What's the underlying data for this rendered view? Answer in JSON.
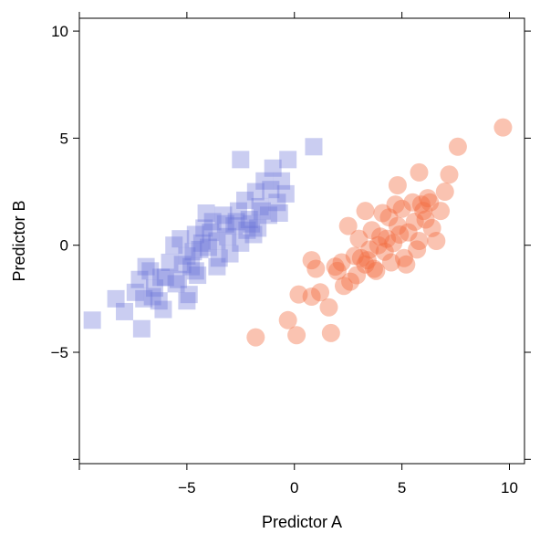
{
  "chart_data": {
    "type": "scatter",
    "xlabel": "Predictor A",
    "ylabel": "Predictor B",
    "xlim": [
      -10,
      10.7
    ],
    "ylim": [
      -10.2,
      10.6
    ],
    "xticks": [
      -10,
      -5,
      0,
      5,
      10
    ],
    "xtick_labels": [
      "",
      "−5",
      "0",
      "5",
      "10"
    ],
    "yticks": [
      -10,
      -5,
      0,
      5,
      10
    ],
    "ytick_labels": [
      "",
      "−5",
      "0",
      "5",
      "10"
    ],
    "grid": false,
    "series": [
      {
        "marker": "square",
        "color": "#6670d8",
        "opacity": 0.35,
        "points": [
          [
            -9.4,
            -3.5
          ],
          [
            -8.3,
            -2.5
          ],
          [
            -7.9,
            -3.1
          ],
          [
            -7.1,
            -3.9
          ],
          [
            -7.4,
            -2.2
          ],
          [
            -7.2,
            -1.6
          ],
          [
            -6.9,
            -1.0
          ],
          [
            -6.5,
            -2.0
          ],
          [
            -6.3,
            -2.6
          ],
          [
            -6.1,
            -3.0
          ],
          [
            -6.0,
            -1.5
          ],
          [
            -5.8,
            -0.8
          ],
          [
            -5.5,
            -1.8
          ],
          [
            -5.3,
            0.3
          ],
          [
            -5.0,
            -0.5
          ],
          [
            -4.8,
            -1.0
          ],
          [
            -4.6,
            0.5
          ],
          [
            -4.4,
            -0.2
          ],
          [
            -4.6,
            -1.2
          ],
          [
            -4.9,
            -2.3
          ],
          [
            -4.7,
            -0.3
          ],
          [
            -4.5,
            -1.4
          ],
          [
            -4.2,
            0.8
          ],
          [
            -4.0,
            -0.1
          ],
          [
            -3.8,
            1.1
          ],
          [
            -3.6,
            0.2
          ],
          [
            -3.5,
            -0.6
          ],
          [
            -3.3,
            1.4
          ],
          [
            -3.1,
            0.4
          ],
          [
            -3.0,
            -0.4
          ],
          [
            -2.8,
            0.9
          ],
          [
            -2.6,
            1.6
          ],
          [
            -2.5,
            0.1
          ],
          [
            -2.3,
            2.1
          ],
          [
            -2.1,
            1.2
          ],
          [
            -1.9,
            0.5
          ],
          [
            -1.8,
            2.5
          ],
          [
            -1.6,
            1.8
          ],
          [
            -1.4,
            3.0
          ],
          [
            -1.2,
            1.4
          ],
          [
            -1.0,
            3.6
          ],
          [
            -0.8,
            2.0
          ],
          [
            -0.6,
            3.0
          ],
          [
            -0.4,
            2.4
          ],
          [
            -0.3,
            4.0
          ],
          [
            0.9,
            4.6
          ],
          [
            -2.5,
            4.0
          ],
          [
            -5.0,
            -2.6
          ],
          [
            -3.6,
            -1.0
          ],
          [
            -6.7,
            -1.2
          ],
          [
            -7.0,
            -2.5
          ],
          [
            -5.6,
            0.0
          ],
          [
            -4.1,
            1.5
          ],
          [
            -3.2,
            1.0
          ],
          [
            -2.2,
            0.7
          ],
          [
            -1.5,
            1.6
          ],
          [
            -1.1,
            2.6
          ],
          [
            -3.9,
            0.6
          ],
          [
            -2.0,
            1.0
          ],
          [
            -5.2,
            -0.9
          ],
          [
            -6.2,
            -1.5
          ],
          [
            -4.3,
            0.1
          ],
          [
            -2.7,
            1.1
          ],
          [
            -0.7,
            1.5
          ],
          [
            -1.7,
            0.8
          ],
          [
            -6.6,
            -2.4
          ],
          [
            -5.4,
            -1.6
          ]
        ]
      },
      {
        "marker": "circle",
        "color": "#f26a3d",
        "opacity": 0.4,
        "points": [
          [
            -1.8,
            -4.3
          ],
          [
            -0.3,
            -3.5
          ],
          [
            0.1,
            -4.2
          ],
          [
            0.2,
            -2.3
          ],
          [
            0.8,
            -2.4
          ],
          [
            1.2,
            -2.2
          ],
          [
            1.6,
            -2.9
          ],
          [
            1.7,
            -4.1
          ],
          [
            0.8,
            -0.7
          ],
          [
            1.0,
            -1.1
          ],
          [
            1.9,
            -1.0
          ],
          [
            2.2,
            -0.8
          ],
          [
            2.3,
            -1.9
          ],
          [
            2.6,
            -1.7
          ],
          [
            2.9,
            -1.4
          ],
          [
            3.1,
            -0.6
          ],
          [
            3.3,
            -0.9
          ],
          [
            3.5,
            -0.2
          ],
          [
            3.6,
            0.7
          ],
          [
            3.8,
            -1.2
          ],
          [
            4.0,
            0.4
          ],
          [
            4.2,
            -0.3
          ],
          [
            4.4,
            1.3
          ],
          [
            4.6,
            0.1
          ],
          [
            4.8,
            0.9
          ],
          [
            5.0,
            1.7
          ],
          [
            5.1,
            -0.6
          ],
          [
            5.3,
            0.6
          ],
          [
            5.5,
            2.0
          ],
          [
            5.6,
            1.1
          ],
          [
            5.8,
            0.2
          ],
          [
            6.0,
            1.6
          ],
          [
            6.2,
            2.2
          ],
          [
            6.4,
            0.8
          ],
          [
            6.6,
            0.2
          ],
          [
            6.8,
            1.6
          ],
          [
            7.0,
            2.5
          ],
          [
            7.2,
            3.3
          ],
          [
            7.6,
            4.6
          ],
          [
            9.7,
            5.5
          ],
          [
            5.8,
            3.4
          ],
          [
            4.8,
            2.8
          ],
          [
            6.3,
            2.0
          ],
          [
            3.3,
            1.6
          ],
          [
            2.5,
            0.9
          ],
          [
            4.1,
            1.5
          ],
          [
            5.2,
            -0.9
          ],
          [
            3.0,
            0.3
          ],
          [
            2.8,
            -0.5
          ],
          [
            4.5,
            -0.8
          ],
          [
            3.7,
            -1.1
          ],
          [
            5.7,
            -0.2
          ],
          [
            4.3,
            0.3
          ],
          [
            6.1,
            1.2
          ],
          [
            4.9,
            0.5
          ],
          [
            3.4,
            -0.7
          ],
          [
            5.9,
            1.9
          ],
          [
            4.7,
            1.9
          ],
          [
            2.0,
            -1.2
          ],
          [
            3.9,
            0.0
          ]
        ]
      }
    ]
  }
}
